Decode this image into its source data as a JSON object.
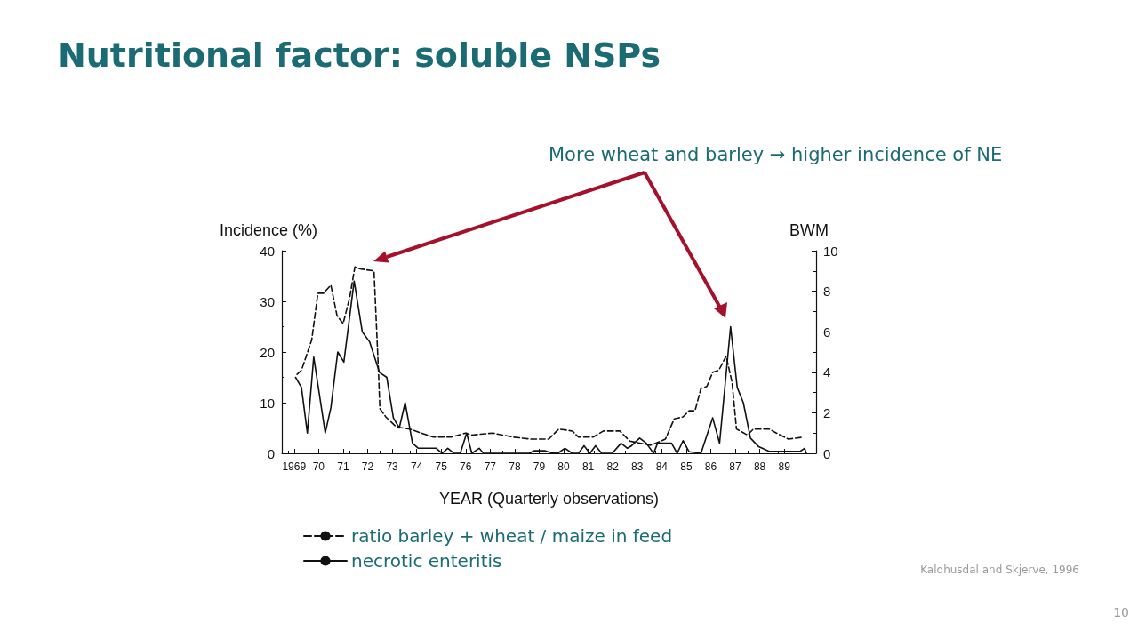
{
  "chart_data": {
    "type": "line",
    "title": "Nutritional factor: soluble NSPs",
    "xlabel": "YEAR (Quarterly observations)",
    "ylabel": "Incidence (%)",
    "y2label": "BWM",
    "annotations": [
      "More wheat and barley → higher incidence of NE",
      "Kaldhusdal and Skjerve, 1996",
      "10"
    ],
    "xlim": [
      1968.5,
      1990.3
    ],
    "xticks": [
      {
        "value": 1969,
        "label": "1969"
      },
      {
        "value": 1970,
        "label": "70"
      },
      {
        "value": 1971,
        "label": "71"
      },
      {
        "value": 1972,
        "label": "72"
      },
      {
        "value": 1973,
        "label": "73"
      },
      {
        "value": 1974,
        "label": "74"
      },
      {
        "value": 1975,
        "label": "75"
      },
      {
        "value": 1976,
        "label": "76"
      },
      {
        "value": 1977,
        "label": "77"
      },
      {
        "value": 1978,
        "label": "78"
      },
      {
        "value": 1979,
        "label": "79"
      },
      {
        "value": 1980,
        "label": "80"
      },
      {
        "value": 1981,
        "label": "81"
      },
      {
        "value": 1982,
        "label": "82"
      },
      {
        "value": 1983,
        "label": "83"
      },
      {
        "value": 1984,
        "label": "84"
      },
      {
        "value": 1985,
        "label": "85"
      },
      {
        "value": 1986,
        "label": "86"
      },
      {
        "value": 1987,
        "label": "87"
      },
      {
        "value": 1988,
        "label": "88"
      },
      {
        "value": 1989,
        "label": "89"
      }
    ],
    "ylim": [
      0,
      40
    ],
    "yticks": [
      0,
      10,
      20,
      30,
      40
    ],
    "y2lim": [
      0,
      10
    ],
    "y2ticks": [
      0,
      2,
      4,
      6,
      8,
      10
    ],
    "grid": false,
    "legend": "bottom",
    "marker": "none",
    "series": [
      {
        "name": "ratio barley + wheat / maize in feed",
        "color": "#111111",
        "axis": "y2",
        "line_style": "dashed",
        "x": [
          1969.12,
          1969.3,
          1969.72,
          1969.97,
          1970.2,
          1970.5,
          1970.75,
          1971.0,
          1971.27,
          1971.48,
          1971.7,
          1972.26,
          1972.44,
          1972.5,
          1972.74,
          1973.17,
          1973.71,
          1974.68,
          1975.4,
          1976.0,
          1976.25,
          1977.1,
          1977.94,
          1978.67,
          1979.39,
          1979.8,
          1980.35,
          1980.6,
          1981.2,
          1981.62,
          1982.29,
          1982.7,
          1983.55,
          1984.15,
          1984.51,
          1984.87,
          1985.12,
          1985.36,
          1985.6,
          1985.84,
          1986.08,
          1986.33,
          1986.63,
          1986.87,
          1987.05,
          1987.5,
          1987.74,
          1988.38,
          1988.68,
          1989.17,
          1989.78
        ],
        "values": [
          3.9,
          4.1,
          5.6,
          7.9,
          7.9,
          8.3,
          6.8,
          6.4,
          7.7,
          9.2,
          9.1,
          9.0,
          4.1,
          2.2,
          1.8,
          1.3,
          1.2,
          0.8,
          0.8,
          1.0,
          0.9,
          1.0,
          0.8,
          0.7,
          0.7,
          1.2,
          1.1,
          0.8,
          0.8,
          1.1,
          1.1,
          0.6,
          0.4,
          0.7,
          1.7,
          1.8,
          2.1,
          2.1,
          3.2,
          3.3,
          4.0,
          4.1,
          4.8,
          3.5,
          1.2,
          0.9,
          1.2,
          1.2,
          1.0,
          0.7,
          0.8
        ]
      },
      {
        "name": "necrotic enteritis",
        "color": "#111111",
        "line_style": "solid",
        "x": [
          1969.06,
          1969.3,
          1969.54,
          1969.8,
          1970.27,
          1970.5,
          1970.78,
          1971.03,
          1971.45,
          1971.78,
          1972.08,
          1972.48,
          1972.78,
          1973.05,
          1973.29,
          1973.53,
          1973.83,
          1974.07,
          1974.8,
          1975.04,
          1975.27,
          1975.52,
          1975.78,
          1976.04,
          1976.25,
          1976.55,
          1976.73,
          1978.6,
          1978.78,
          1979.25,
          1979.5,
          1979.75,
          1980.05,
          1980.35,
          1980.6,
          1980.83,
          1981.07,
          1981.3,
          1981.55,
          1981.98,
          1982.34,
          1982.6,
          1982.77,
          1983.1,
          1983.37,
          1983.67,
          1983.83,
          1984.4,
          1984.63,
          1984.87,
          1985.12,
          1985.6,
          1986.08,
          1986.36,
          1986.81,
          1987.08,
          1987.33,
          1987.62,
          1987.96,
          1988.38,
          1988.93,
          1989.65,
          1989.83,
          1989.9
        ],
        "values": [
          15,
          13,
          4,
          19,
          4,
          9,
          20,
          18,
          34,
          24,
          22,
          16,
          15,
          7,
          5,
          10,
          2,
          1,
          1,
          0,
          1,
          0,
          0,
          4,
          0,
          1,
          0,
          0,
          0.5,
          0.5,
          0.1,
          0,
          1,
          0,
          0,
          1.5,
          0,
          1.5,
          0,
          0,
          2,
          1,
          1.5,
          3,
          2,
          0,
          2,
          2,
          0,
          2.5,
          0.3,
          0,
          7,
          2,
          25,
          13,
          10,
          3,
          1.3,
          0.4,
          0.4,
          0.4,
          1,
          0
        ]
      }
    ]
  }
}
